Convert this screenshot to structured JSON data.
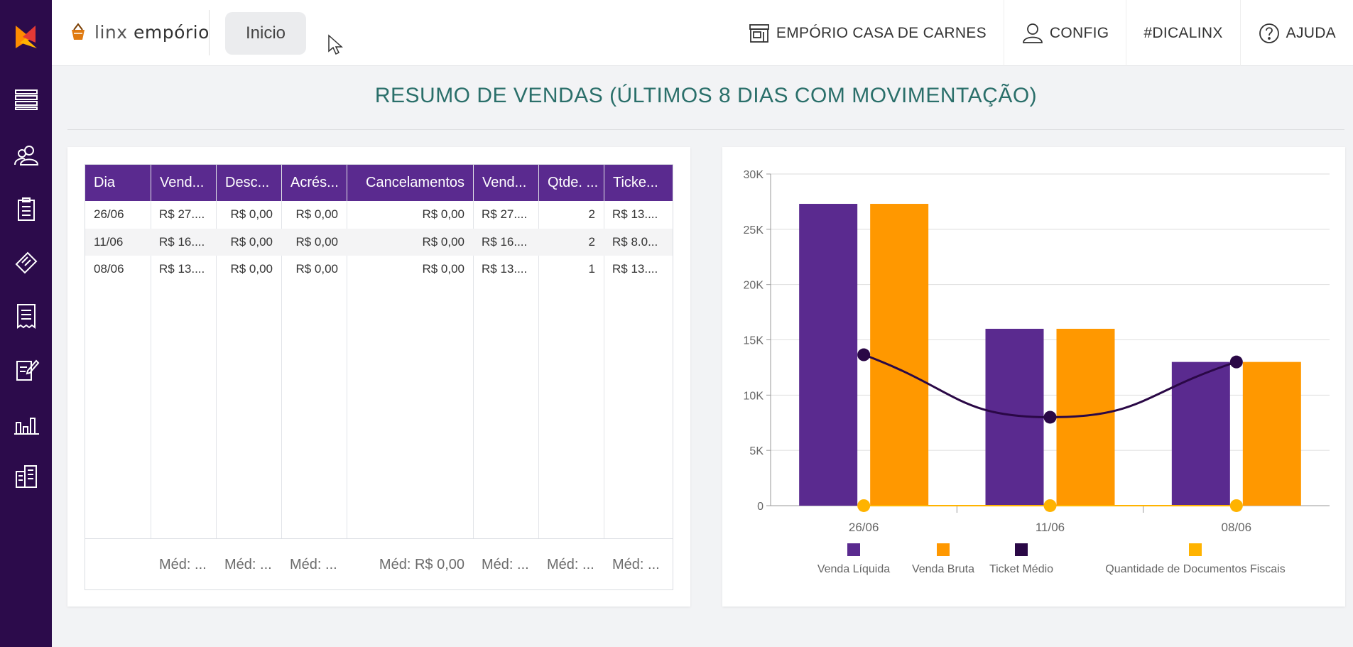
{
  "sidebar": {
    "items": [
      {
        "icon": "list-icon"
      },
      {
        "icon": "users-icon"
      },
      {
        "icon": "clipboard-icon"
      },
      {
        "icon": "ticket-icon"
      },
      {
        "icon": "receipt-icon"
      },
      {
        "icon": "edit-document-icon"
      },
      {
        "icon": "bar-chart-icon"
      },
      {
        "icon": "buildings-icon"
      }
    ]
  },
  "header": {
    "brand_light": "linx ",
    "brand_bold": "empório",
    "tab_label": "Inicio",
    "nav": {
      "store": "EMPÓRIO CASA DE CARNES",
      "config": "CONFIG",
      "tag": "#DICALINX",
      "help": "AJUDA"
    }
  },
  "section": {
    "title": "RESUMO DE VENDAS (ÚLTIMOS 8 DIAS COM MOVIMENTAÇÃO)"
  },
  "table": {
    "headers": [
      "Dia",
      "Vend...",
      "Desc...",
      "Acrés...",
      "Cancelamentos",
      "Vend...",
      "Qtde. ...",
      "Ticke..."
    ],
    "rows": [
      [
        "26/06",
        "R$ 27....",
        "R$ 0,00",
        "R$ 0,00",
        "R$ 0,00",
        "R$ 27....",
        "2",
        "R$ 13...."
      ],
      [
        "11/06",
        "R$ 16....",
        "R$ 0,00",
        "R$ 0,00",
        "R$ 0,00",
        "R$ 16....",
        "2",
        "R$ 8.0..."
      ],
      [
        "08/06",
        "R$ 13....",
        "R$ 0,00",
        "R$ 0,00",
        "R$ 0,00",
        "R$ 13....",
        "1",
        "R$ 13...."
      ]
    ],
    "footer": [
      "",
      "Méd: ...",
      "Méd: ...",
      "Méd: ...",
      "Méd: R$ 0,00",
      "Méd: ...",
      "Méd: ...",
      "Méd: ..."
    ]
  },
  "colors": {
    "sidebar": "#2c0b4b",
    "header_bg": "#5a2a8f",
    "title": "#2a6f6a",
    "venda_liquida": "#5a2a8f",
    "venda_bruta": "#ff9800",
    "ticket_medio": "#2a0846",
    "qtd_docs": "#ffb300"
  },
  "chart_data": {
    "type": "bar",
    "categories": [
      "26/06",
      "11/06",
      "08/06"
    ],
    "yticks": [
      "0",
      "5K",
      "10K",
      "15K",
      "20K",
      "25K",
      "30K"
    ],
    "ylim": [
      0,
      30000
    ],
    "grid": true,
    "legend_position": "bottom",
    "series": [
      {
        "name": "Venda Líquida",
        "kind": "bar",
        "values": [
          27300,
          16000,
          13000
        ]
      },
      {
        "name": "Venda Bruta",
        "kind": "bar",
        "values": [
          27300,
          16000,
          13000
        ]
      },
      {
        "name": "Ticket Médio",
        "kind": "line",
        "values": [
          13650,
          8000,
          13000
        ]
      },
      {
        "name": "Quantidade de Documentos Fiscais",
        "kind": "line",
        "values": [
          2,
          2,
          1
        ]
      }
    ]
  }
}
